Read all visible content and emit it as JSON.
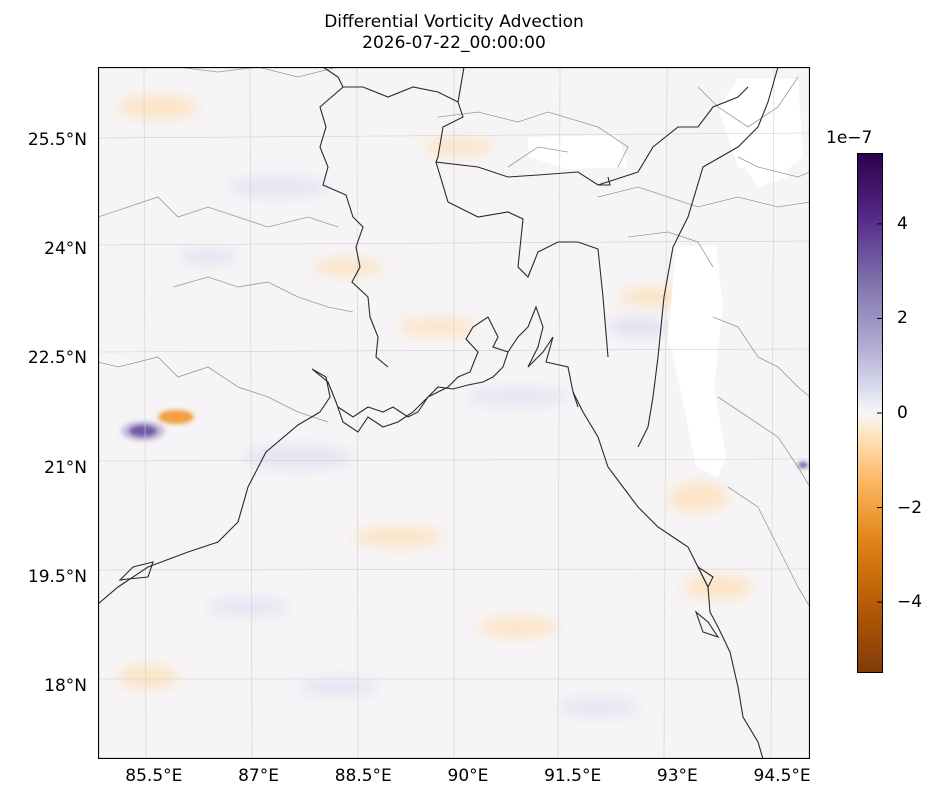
{
  "title": "Differential Vorticity Advection",
  "subtitle": "2026-07-22_00:00:00",
  "map": {
    "projection": "lat-lon",
    "extent": {
      "lon_min": 84.7,
      "lon_max": 94.9,
      "lat_min": 17.0,
      "lat_max": 26.5
    },
    "lat_ticks": [
      {
        "value": 25.5,
        "label": "25.5°N"
      },
      {
        "value": 24.0,
        "label": "24°N"
      },
      {
        "value": 22.5,
        "label": "22.5°N"
      },
      {
        "value": 21.0,
        "label": "21°N"
      },
      {
        "value": 19.5,
        "label": "19.5°N"
      },
      {
        "value": 18.0,
        "label": "18°N"
      }
    ],
    "lon_ticks": [
      {
        "value": 85.5,
        "label": "85.5°E"
      },
      {
        "value": 87.0,
        "label": "87°E"
      },
      {
        "value": 88.5,
        "label": "88.5°E"
      },
      {
        "value": 90.0,
        "label": "90°E"
      },
      {
        "value": 91.5,
        "label": "91.5°E"
      },
      {
        "value": 93.0,
        "label": "93°E"
      },
      {
        "value": 94.5,
        "label": "94.5°E"
      }
    ],
    "gridlines": true,
    "colors": {
      "coast": "#222222",
      "border": "#999999",
      "grid": "#cccccc",
      "missing": "#ffffff"
    }
  },
  "colorbar": {
    "exponent_label": "1e−7",
    "vmin": -5.5,
    "vmax": 5.5,
    "cmap": "PuOr",
    "ticks": [
      {
        "value": 4,
        "label": "4"
      },
      {
        "value": 2,
        "label": "2"
      },
      {
        "value": 0,
        "label": "0"
      },
      {
        "value": -2,
        "label": "−2"
      },
      {
        "value": -4,
        "label": "−4"
      }
    ]
  }
}
